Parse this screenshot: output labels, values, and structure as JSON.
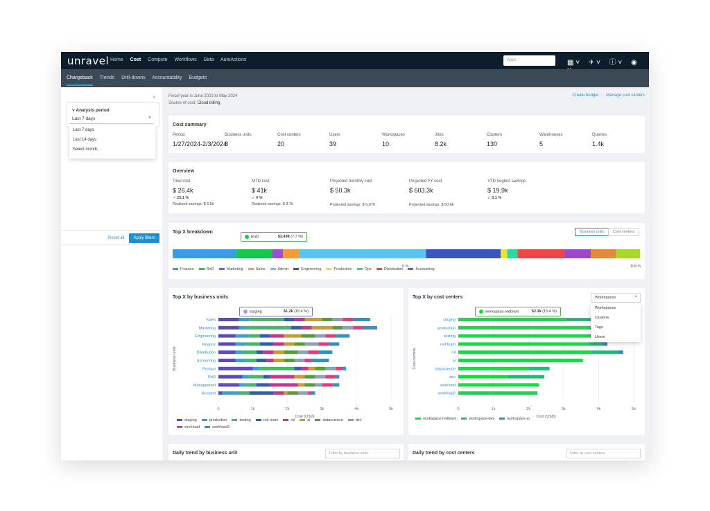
{
  "app": {
    "logo": "unravel",
    "nav": [
      "Home",
      "Cost",
      "Compute",
      "Workflows",
      "Data",
      "AutoActions"
    ],
    "nav_active": "Cost",
    "search_placeholder": "Apps",
    "subnav": [
      "Chargeback",
      "Trends",
      "Drill-downs",
      "Accountability",
      "Budgets"
    ],
    "subnav_active": "Chargeback"
  },
  "left": {
    "analysis_title": "Analysis period",
    "selected": "Last 7 days",
    "options": [
      "Last 7 days",
      "Last 14 days",
      "Select month..."
    ],
    "reset": "Reset all",
    "apply": "Apply filters"
  },
  "header": {
    "fiscal": "Fiscal year is June 2023 to May 2024",
    "source_label": "Source of cost:",
    "source_value": "Cloud billing",
    "create_budget": "Create budget",
    "manage": "Manage cost centers"
  },
  "cost_summary": {
    "title": "Cost summary",
    "items": [
      {
        "label": "Period",
        "value": "1/27/2024-2/3/2024"
      },
      {
        "label": "Business units",
        "value": "8"
      },
      {
        "label": "Cost centers",
        "value": "20"
      },
      {
        "label": "Users",
        "value": "39"
      },
      {
        "label": "Workspaces",
        "value": "10"
      },
      {
        "label": "Jobs",
        "value": "8.2k"
      },
      {
        "label": "Clusters",
        "value": "130"
      },
      {
        "label": "Warehouses",
        "value": "5"
      },
      {
        "label": "Queries",
        "value": "1.4k"
      }
    ]
  },
  "overview": {
    "title": "Overview",
    "items": [
      {
        "label": "Total cost",
        "value": "$ 26.4k",
        "delta": "25.1 %",
        "dir": "up",
        "sub": "Realized savings: $ 6.5k"
      },
      {
        "label": "MTD cost",
        "value": "$ 41k",
        "delta": "0 %",
        "dir": "down",
        "sub": "Realized savings: $ 9.7k"
      },
      {
        "label": "Projected monthly cost",
        "value": "$ 50.3k",
        "delta": "",
        "dir": "",
        "sub": "Projected savings: $ 9,070"
      },
      {
        "label": "Projected FY cost",
        "value": "$ 603.3k",
        "delta": "",
        "dir": "",
        "sub": "Projected savings: $ 50.6k"
      },
      {
        "label": "YTD neglect savings",
        "value": "$ 19.9k",
        "delta": "3.1 %",
        "dir": "down",
        "sub": ""
      }
    ]
  },
  "breakdown": {
    "title": "Top X breakdown",
    "toggle": [
      "Business units",
      "Cost centers"
    ],
    "tooltip_name": "RnD",
    "tooltip_value": "$2,498",
    "tooltip_pct": "(7.7 %)",
    "axis_start": "0 %",
    "axis_end": "100 %",
    "legend": [
      "Finance",
      "RnD",
      "Marketing",
      "Sales",
      "Admin",
      "Engineering",
      "Production",
      "Ops",
      "Distribution",
      "Accounting"
    ]
  },
  "bu_chart": {
    "title": "Top X by business units",
    "ylabel": "Business units",
    "xlabel": "Cost (USD)",
    "tooltip_name": "staging",
    "tooltip_value": "$1.2k",
    "tooltip_pct": "(15.4 %)"
  },
  "cc_chart": {
    "title": "Top X by cost centers",
    "ylabel": "Cost centers",
    "xlabel": "Cost (USD)",
    "select": "Workspaces",
    "options": [
      "Workspaces",
      "Clusters",
      "Tags",
      "Users"
    ],
    "tooltip_name": "workspace-redteam",
    "tooltip_value": "$2.3k",
    "tooltip_pct": "(15.4 %)",
    "legend": [
      "workspace-redteam",
      "workspace-dev",
      "workspace-ai"
    ]
  },
  "daily": {
    "bu_title": "Daily trend by business unit",
    "bu_filter": "Filter by business units",
    "cc_title": "Daily trend by cost centers",
    "cc_filter": "Filter by cost centers"
  },
  "colors": {
    "Finance": "#3a9be6",
    "RnD": "#14c84c",
    "Marketing": "#9b4fd6",
    "Sales": "#f39a3c",
    "Admin": "#5bc3ef",
    "Engineering": "#3a54c2",
    "Production": "#e9e23a",
    "Ops": "#2dd6a0",
    "Distribution": "#ef4545",
    "Accounting": "#9a47c8",
    "staging": "#5b4bb7",
    "production": "#3fa0c8",
    "testing": "#4cb36a",
    "red team": "#2f5fa8",
    "ml": "#c0398a",
    "ai": "#c79b3a",
    "datascience": "#5a9c3a",
    "dev": "#8aa3b8",
    "workload": "#e0407a",
    "workload2": "#3a8fbc",
    "workspace-redteam": "#1fd64a",
    "workspace-dev": "#27b87a",
    "workspace-ai": "#3a86c8"
  },
  "chart_data": [
    {
      "type": "bar",
      "title": "Top X breakdown",
      "orientation": "horizontal-stacked-100",
      "series": [
        {
          "name": "Finance",
          "values": [
            13.6
          ]
        },
        {
          "name": "RnD",
          "values": [
            7.7
          ]
        },
        {
          "name": "Marketing",
          "values": [
            2.3
          ]
        },
        {
          "name": "Sales",
          "values": [
            3.5
          ]
        },
        {
          "name": "Admin",
          "values": [
            27.1
          ]
        },
        {
          "name": "Engineering",
          "values": [
            16.0
          ]
        },
        {
          "name": "Production",
          "values": [
            1.4
          ]
        },
        {
          "name": "Ops",
          "values": [
            2.2
          ]
        },
        {
          "name": "Distribution",
          "values": [
            10.0
          ]
        },
        {
          "name": "Accounting",
          "values": [
            5.7
          ]
        },
        {
          "name": "",
          "color": "#e3893a",
          "values": [
            5.4
          ]
        },
        {
          "name": "",
          "color": "#a8d82a",
          "values": [
            5.1
          ]
        }
      ]
    },
    {
      "type": "bar",
      "title": "Top X by business units",
      "orientation": "horizontal-stacked",
      "xlabel": "Cost (USD)",
      "ylabel": "Business units",
      "xlim": [
        0,
        5000
      ],
      "xticks": [
        "0",
        "1k",
        "2k",
        "3k",
        "4k",
        "5k"
      ],
      "categories": [
        "Sales",
        "Marketing",
        "Engineering",
        "Finance",
        "Distribution",
        "Accounting",
        "Product",
        "RnD",
        "Management",
        "Account"
      ],
      "series": [
        {
          "name": "staging",
          "values": [
            600,
            600,
            500,
            500,
            500,
            500,
            1000,
            700,
            600,
            100
          ]
        },
        {
          "name": "production",
          "values": [
            300,
            200,
            400,
            300,
            200,
            300,
            200,
            200,
            200,
            500
          ]
        },
        {
          "name": "testing",
          "values": [
            1000,
            1300,
            300,
            400,
            400,
            300,
            1000,
            400,
            300,
            300
          ]
        },
        {
          "name": "red team",
          "values": [
            300,
            300,
            300,
            400,
            200,
            300,
            200,
            200,
            400,
            700
          ]
        },
        {
          "name": "ml",
          "values": [
            300,
            300,
            400,
            300,
            300,
            200,
            200,
            700,
            800,
            300
          ]
        },
        {
          "name": "ai",
          "values": [
            500,
            600,
            500,
            300,
            300,
            300,
            200,
            300,
            200,
            100
          ]
        },
        {
          "name": "datascience",
          "values": [
            300,
            300,
            400,
            300,
            400,
            300,
            300,
            300,
            300,
            300
          ]
        },
        {
          "name": "dev",
          "values": [
            300,
            300,
            300,
            400,
            300,
            300,
            300,
            300,
            200,
            300
          ]
        },
        {
          "name": "workload",
          "values": [
            300,
            300,
            300,
            300,
            300,
            200,
            200,
            300,
            300,
            100
          ]
        },
        {
          "name": "workload2",
          "values": [
            500,
            400,
            400,
            300,
            400,
            500,
            100,
            100,
            200,
            100
          ]
        }
      ]
    },
    {
      "type": "bar",
      "title": "Top X by cost centers",
      "orientation": "horizontal-stacked",
      "xlabel": "Cost (USD)",
      "ylabel": "Cost centers",
      "xlim": [
        0,
        5000
      ],
      "xticks": [
        "0",
        "1k",
        "2k",
        "3k",
        "4k",
        "5k"
      ],
      "categories": [
        "staging",
        "production",
        "testing",
        "red team",
        "ml",
        "ai",
        "datascience",
        "dev",
        "workload",
        "workload2"
      ],
      "series": [
        {
          "name": "workspace-redteam",
          "values": [
            3050,
            3750,
            3750,
            3700,
            3800,
            3550,
            2000,
            1400,
            2300,
            2250
          ]
        },
        {
          "name": "workspace-dev",
          "values": [
            1300,
            950,
            400,
            400,
            750,
            0,
            600,
            1050,
            0,
            0
          ]
        },
        {
          "name": "workspace-ai",
          "values": [
            150,
            150,
            150,
            150,
            150,
            0,
            0,
            0,
            0,
            0
          ]
        }
      ]
    }
  ]
}
